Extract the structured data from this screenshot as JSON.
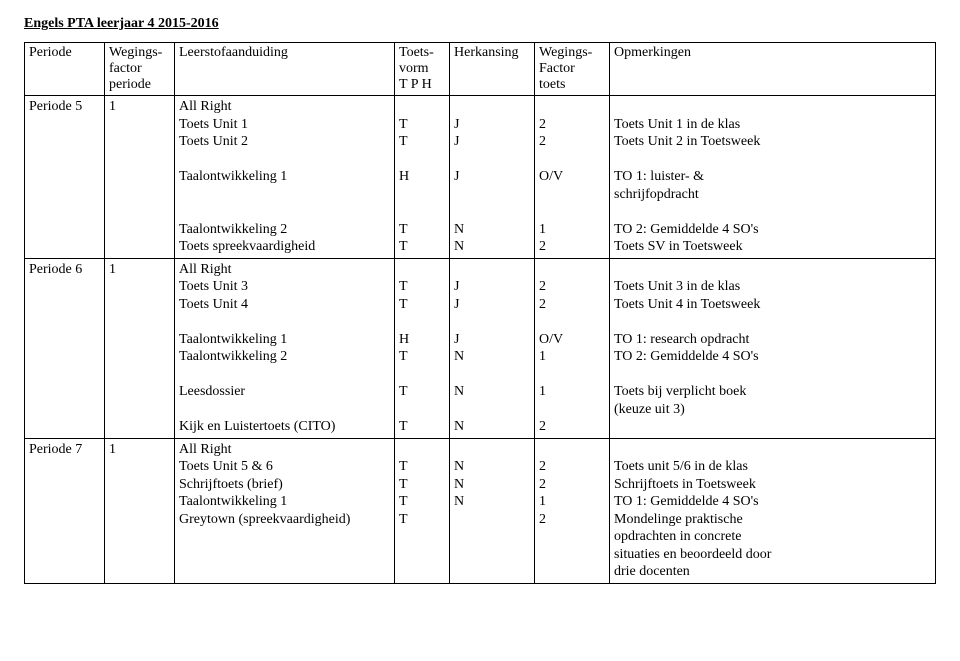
{
  "title": "Engels PTA leerjaar 4 2015-2016",
  "headers": {
    "periode": "Periode",
    "wf": "Wegings-\nfactor\nperiode",
    "leerstof": "Leerstofaanduiding",
    "tv": "Toets-\nvorm\nT P H",
    "herk": "Herkansing",
    "wft": "Wegings-\nFactor\ntoets",
    "opm": "Opmerkingen"
  },
  "rows": [
    {
      "periode": "Periode 5",
      "wf": "1",
      "leerstof": [
        "All Right",
        "Toets Unit 1",
        "Toets  Unit 2",
        "",
        "Taalontwikkeling 1",
        "",
        "",
        "Taalontwikkeling 2",
        "Toets spreekvaardigheid"
      ],
      "tv": [
        "",
        "T",
        "T",
        "",
        "H",
        "",
        "",
        "T",
        "T"
      ],
      "herk": [
        "",
        "J",
        "J",
        "",
        "J",
        "",
        "",
        "N",
        "N"
      ],
      "wft": [
        "",
        "2",
        "2",
        "",
        "O/V",
        "",
        "",
        "1",
        "2"
      ],
      "opm": [
        "",
        "Toets Unit 1 in de klas",
        "Toets Unit 2 in Toetsweek",
        "",
        "TO 1: luister- &",
        "schrijfopdracht",
        "",
        "TO 2: Gemiddelde 4 SO's",
        "Toets SV in Toetsweek"
      ]
    },
    {
      "periode": "Periode 6",
      "wf": "1",
      "leerstof": [
        "All Right",
        "Toets Unit 3",
        "Toets Unit 4",
        "",
        "Taalontwikkeling 1",
        "Taalontwikkeling 2",
        "",
        "Leesdossier",
        "",
        "Kijk en Luistertoets (CITO)"
      ],
      "tv": [
        "",
        "T",
        "T",
        "",
        "H",
        "T",
        "",
        "T",
        "",
        "T"
      ],
      "herk": [
        "",
        "J",
        "J",
        "",
        "J",
        "N",
        "",
        "N",
        "",
        "N"
      ],
      "wft": [
        "",
        "2",
        "2",
        "",
        "O/V",
        "1",
        "",
        "1",
        "",
        "2"
      ],
      "opm": [
        "",
        "Toets Unit 3 in de klas",
        "Toets Unit 4 in Toetsweek",
        "",
        "TO 1: research opdracht",
        "TO 2: Gemiddelde 4 SO's",
        "",
        "Toets bij verplicht boek",
        "(keuze uit 3)",
        ""
      ]
    },
    {
      "periode": "Periode 7",
      "wf": "1",
      "leerstof": [
        "All Right",
        "Toets Unit 5 & 6",
        "Schrijftoets (brief)",
        "Taalontwikkeling 1",
        "Greytown (spreekvaardigheid)"
      ],
      "tv": [
        "",
        "T",
        "T",
        "T",
        "T"
      ],
      "herk": [
        "",
        "N",
        "N",
        "N",
        ""
      ],
      "wft": [
        "",
        "2",
        "2",
        "1",
        "2"
      ],
      "opm": [
        "",
        "Toets unit 5/6 in de klas",
        "Schrijftoets in Toetsweek",
        "TO 1: Gemiddelde 4 SO's",
        "Mondelinge praktische",
        "opdrachten in concrete",
        "situaties en beoordeeld door",
        "drie docenten"
      ]
    }
  ]
}
